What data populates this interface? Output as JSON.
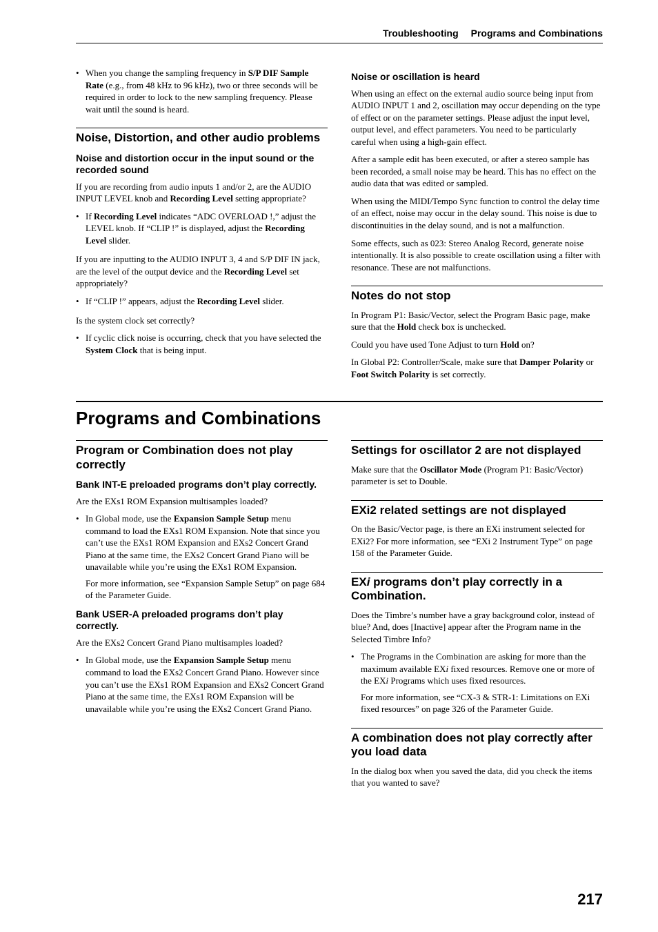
{
  "running_head": {
    "left": "Troubleshooting",
    "right": "Programs and Combinations"
  },
  "top_bullet": "When you change the sampling frequency in <b>S/P DIF Sample Rate</b> (e.g., from 48 kHz to 96 kHz), two or three seconds will be required in order to lock to the new sampling frequency. Please wait until the sound is heard.",
  "noise_section": {
    "heading": "Noise, Distortion, and other audio problems",
    "sub1_heading": "Noise and distortion occur in the input sound or the recorded sound",
    "sub1_p1": "If you are recording from audio inputs 1 and/or 2, are the AUDIO INPUT LEVEL knob and <b>Recording Level</b> setting appropriate?",
    "sub1_b1": "If <b>Recording Level</b> indicates “ADC OVERLOAD !,” adjust the LEVEL knob. If “CLIP !” is displayed, adjust the <b>Recording Level</b> slider.",
    "sub1_p2": "If you are inputting to the AUDIO INPUT 3, 4 and S/P DIF IN jack, are the level of the output device and the <b>Recording Level</b> set appropriately?",
    "sub1_b2": "If “CLIP !” appears, adjust the <b>Recording Level</b> slider.",
    "sub1_p3": "Is the system clock set correctly?",
    "sub1_b3": "If cyclic click noise is occurring, check that you have selected the <b>System Clock</b> that is being input.",
    "sub2_heading": "Noise or oscillation is heard",
    "sub2_p1": "When using an effect on the external audio source being input from AUDIO INPUT 1 and 2, oscillation may occur depending on the type of effect or on the parameter settings. Please adjust the input level, output level, and effect parameters. You need to be particularly careful when using a high-gain effect.",
    "sub2_p2": "After a sample edit has been executed, or after a stereo sample has been recorded, a small noise may be heard. This has no effect on the audio data that was edited or sampled.",
    "sub2_p3": "When using the MIDI/Tempo Sync function to control the delay time of an effect, noise may occur in the delay sound. This noise is due to discontinuities in the delay sound, and is not a malfunction.",
    "sub2_p4": "Some effects, such as 023: Stereo Analog Record, generate noise intentionally. It is also possible to create oscillation using a filter with resonance. These are not malfunctions."
  },
  "notes_stop": {
    "heading": "Notes do not stop",
    "p1": "In Program P1: Basic/Vector, select the Program Basic page, make sure that the <b>Hold</b> check box is unchecked.",
    "p2": "Could you have used Tone Adjust to turn <b>Hold</b> on?",
    "p3": "In Global P2: Controller/Scale, make sure that <b>Damper Polarity</b> or <b>Foot Switch Polarity</b> is set correctly."
  },
  "h1": "Programs and Combinations",
  "prog_correct": {
    "heading": "Program or Combination does not play correctly",
    "sub1_heading": "Bank INT-E preloaded programs don’t play correctly.",
    "sub1_p1": "Are the EXs1 ROM Expansion multisamples loaded?",
    "sub1_b1": "In Global mode, use the <b>Expansion Sample Setup</b> menu command to load the EXs1 ROM Expansion. Note that since you can’t use the EXs1 ROM Expansion and EXs2 Concert Grand Piano at the same time, the EXs2 Concert Grand Piano will be unavailable while you’re using the EXs1 ROM Expansion.",
    "sub1_b1_more": "For more information, see “Expansion Sample Setup” on page 684 of the Parameter Guide.",
    "sub2_heading": "Bank USER-A preloaded programs don’t play correctly.",
    "sub2_p1": "Are the EXs2 Concert Grand Piano multisamples loaded?",
    "sub2_b1": "In Global mode, use the <b>Expansion Sample Setup</b> menu command to load the EXs2 Concert Grand Piano. However since you can’t use the EXs1 ROM Expansion and EXs2 Concert Grand Piano at the same time, the EXs1 ROM Expansion will be unavailable while you’re using the EXs2 Concert Grand Piano."
  },
  "osc2": {
    "heading": "Settings for oscillator 2 are not displayed",
    "p1": "Make sure that the <b>Oscillator Mode</b> (Program P1: Basic/Vector) parameter is set to Double."
  },
  "exi2": {
    "heading": "EXi2 related settings are not displayed",
    "p1": "On the Basic/Vector page, is there an EXi instrument selected for EXi2? For more information, see “EXi 2 Instrument Type” on page 158 of the Parameter Guide."
  },
  "exi_combi": {
    "heading": "EX<i>i</i> programs don’t play correctly in a Combination.",
    "p1": "Does the Timbre’s number have a gray background color, instead of blue? And, does [Inactive] appear after the Program name in the Selected Timbre Info?",
    "b1": "The Programs in the Combination are asking for more than the maximum available EX<i>i</i> fixed resources. Remove one or more of the EX<i>i</i> Programs which uses fixed resources.",
    "b1_more": "For more information, see “CX-3 & STR-1: Limitations on EXi fixed resources” on page 326 of the Parameter Guide."
  },
  "combi_load": {
    "heading": "A combination does not play correctly after you load data",
    "p1": "In the dialog box when you saved the data, did you check the items that you wanted to save?"
  },
  "page_number": "217"
}
